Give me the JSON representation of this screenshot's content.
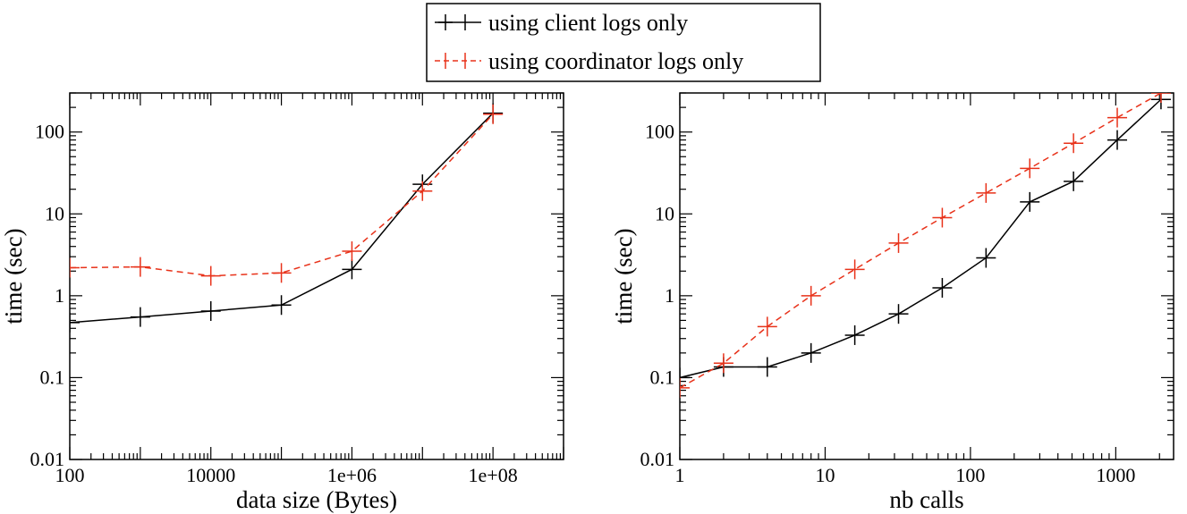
{
  "legend": {
    "items": [
      {
        "label": "using client logs only",
        "color": "#000000",
        "dashed": false
      },
      {
        "label": "using coordinator logs only",
        "color": "#e8321a",
        "dashed": true
      }
    ]
  },
  "chart_data": [
    {
      "type": "line",
      "xlabel": "data size (Bytes)",
      "ylabel": "time (sec)",
      "xscale": "log",
      "yscale": "log",
      "xlim": [
        100,
        1000000000
      ],
      "ylim": [
        0.01,
        300
      ],
      "xticks": [
        100,
        10000,
        1000000,
        100000000
      ],
      "xtick_labels": [
        "100",
        "10000",
        "1e+06",
        "1e+08"
      ],
      "yticks": [
        0.01,
        0.1,
        1,
        10,
        100
      ],
      "ytick_labels": [
        "0.01",
        "0.1",
        "1",
        "10",
        "100"
      ],
      "series": [
        {
          "name": "using client logs only",
          "color": "#000000",
          "dashed": false,
          "x": [
            100,
            1000,
            10000,
            100000,
            1000000,
            10000000,
            100000000
          ],
          "y": [
            0.47,
            0.55,
            0.65,
            0.77,
            2.1,
            23,
            170
          ]
        },
        {
          "name": "using coordinator logs only",
          "color": "#e8321a",
          "dashed": true,
          "x": [
            100,
            1000,
            10000,
            100000,
            1000000,
            10000000,
            100000000
          ],
          "y": [
            2.2,
            2.25,
            1.75,
            1.9,
            3.5,
            19,
            165
          ]
        }
      ]
    },
    {
      "type": "line",
      "xlabel": "nb calls",
      "ylabel": "time (sec)",
      "xscale": "log",
      "yscale": "log",
      "xlim": [
        1,
        2500
      ],
      "ylim": [
        0.01,
        300
      ],
      "xticks": [
        1,
        10,
        100,
        1000
      ],
      "xtick_labels": [
        "1",
        "10",
        "100",
        "1000"
      ],
      "yticks": [
        0.01,
        0.1,
        1,
        10,
        100
      ],
      "ytick_labels": [
        "0.01",
        "0.1",
        "1",
        "10",
        "100"
      ],
      "series": [
        {
          "name": "using client logs only",
          "color": "#000000",
          "dashed": false,
          "x": [
            1,
            2,
            4,
            8,
            16,
            32,
            64,
            128,
            256,
            512,
            1024,
            2048
          ],
          "y": [
            0.1,
            0.135,
            0.135,
            0.2,
            0.33,
            0.6,
            1.25,
            2.9,
            14,
            25,
            80,
            250
          ]
        },
        {
          "name": "using coordinator logs only",
          "color": "#e8321a",
          "dashed": true,
          "x": [
            1,
            2,
            4,
            8,
            16,
            32,
            64,
            128,
            256,
            512,
            1024,
            2048
          ],
          "y": [
            0.075,
            0.15,
            0.42,
            1.0,
            2.1,
            4.4,
            9,
            18,
            36,
            73,
            150,
            300
          ]
        }
      ]
    }
  ]
}
